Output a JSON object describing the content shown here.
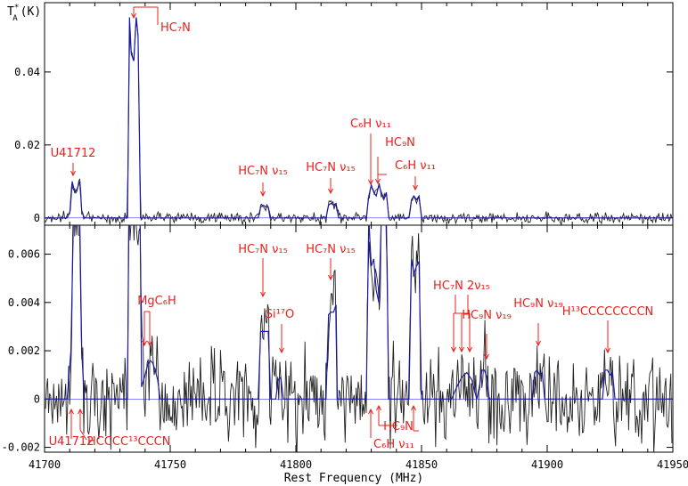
{
  "chart_data": [
    {
      "type": "line",
      "panel": "top",
      "ylabel": "T",
      "ylabel_sub": "A",
      "ylabel_sup": "*",
      "ylabel_unit": "(K)",
      "xlim": [
        41700,
        41950
      ],
      "ylim": [
        -0.002,
        0.059
      ],
      "yticks": [
        0,
        0.02,
        0.04
      ],
      "ytick_labels": [
        "0",
        "0.02",
        "0.04"
      ],
      "series": [
        {
          "color": "#1a1aa8",
          "role": "model",
          "x": [
            41700,
            41709,
            41710.2,
            41711,
            41712,
            41713,
            41714,
            41714.8,
            41715.8,
            41733,
            41733.8,
            41734.5,
            41735.5,
            41736.5,
            41737.2,
            41738.2,
            41785,
            41786,
            41787,
            41788,
            41789,
            41790,
            41812,
            41813,
            41814,
            41815,
            41816,
            41817,
            41828,
            41829,
            41830,
            41831,
            41832,
            41833,
            41834,
            41835,
            41836,
            41837,
            41845,
            41846,
            41847,
            41848,
            41849,
            41850,
            41950
          ],
          "y": [
            0,
            0,
            0.002,
            0.01,
            0.007,
            0.008,
            0.01,
            0.002,
            0,
            0,
            0.055,
            0.045,
            0.043,
            0.055,
            0.05,
            0,
            0,
            0.003,
            0.0035,
            0.003,
            0.003,
            0,
            0,
            0.0035,
            0.004,
            0.0035,
            0.004,
            0,
            0,
            0.006,
            0.009,
            0.007,
            0.006,
            0.009,
            0.007,
            0.005,
            0.007,
            0,
            0,
            0.005,
            0.006,
            0.005,
            0.006,
            0,
            0
          ]
        }
      ],
      "annotations": [
        {
          "text": "HC₇N",
          "x": 41736
        },
        {
          "text": "U41712",
          "x": 41712
        },
        {
          "text": "HC₇N ν₁₅",
          "x": 41787
        },
        {
          "text": "HC₇N ν₁₅",
          "x": 41814
        },
        {
          "text": "C₆H ν₁₁",
          "x": 41830
        },
        {
          "text": "HC₉N",
          "x": 41834
        },
        {
          "text": "C₆H ν₁₁",
          "x": 41847
        }
      ]
    },
    {
      "type": "line",
      "panel": "bottom",
      "xlabel": "Rest Frequency (MHz)",
      "xlim": [
        41700,
        41950
      ],
      "ylim": [
        -0.0022,
        0.0072
      ],
      "xticks": [
        41700,
        41750,
        41800,
        41850,
        41900,
        41950
      ],
      "xtick_labels": [
        "41700",
        "41750",
        "41800",
        "41850",
        "41900",
        "41950"
      ],
      "yticks": [
        -0.002,
        0,
        0.002,
        0.004,
        0.006
      ],
      "ytick_labels": [
        "-0.002",
        "0",
        "0.002",
        "0.004",
        "0.006"
      ],
      "series": [
        {
          "color": "#1a1aa8",
          "role": "model",
          "x": [
            41700,
            41709,
            41710.5,
            41711.5,
            41713,
            41714,
            41714.8,
            41715.8,
            41733,
            41733.5,
            41738,
            41738.6,
            41740,
            41741,
            41742,
            41743,
            41744,
            41745,
            41746,
            41785,
            41786,
            41787,
            41788,
            41789,
            41790,
            41792,
            41793,
            41794,
            41795,
            41812,
            41813,
            41814,
            41815,
            41816,
            41816.5,
            41828,
            41829,
            41830,
            41831,
            41832,
            41833,
            41834,
            41835,
            41836,
            41837,
            41845,
            41846,
            41847,
            41848,
            41849,
            41850,
            41862,
            41864,
            41866,
            41868,
            41870,
            41872,
            41873,
            41874,
            41875,
            41876,
            41877,
            41894,
            41895,
            41896,
            41897,
            41898,
            41899,
            41922,
            41923,
            41924,
            41925,
            41926,
            41927,
            41950
          ],
          "y": [
            0,
            0,
            0.002,
            0.0075,
            0.0075,
            0.0075,
            0.002,
            0,
            0,
            0.0075,
            0.0075,
            0.0005,
            0.001,
            0.0014,
            0.0016,
            0.0015,
            0.0012,
            0.0008,
            0,
            0,
            0.0028,
            0.0028,
            0.0028,
            0.0028,
            0,
            0,
            0.0008,
            0.0009,
            0,
            0,
            0.0035,
            0.0036,
            0.0036,
            0.0039,
            0,
            0,
            0.0075,
            0.0055,
            0.0058,
            0.0045,
            0.004,
            0.0075,
            0.0075,
            0.0075,
            0,
            0,
            0.0058,
            0.0052,
            0.0055,
            0.0057,
            0,
            0,
            0.0005,
            0.0009,
            0.0011,
            0.0008,
            0,
            0.0005,
            0.0012,
            0.0012,
            0.0009,
            0,
            0,
            0.0011,
            0.0012,
            0.001,
            0.0011,
            0,
            0,
            0.0012,
            0.0012,
            0.001,
            0.0011,
            0,
            0
          ]
        }
      ],
      "annotations": [
        {
          "text": "HC₇N ν₁₅",
          "x": 41787
        },
        {
          "text": "HC₇N ν₁₅",
          "x": 41814
        },
        {
          "text": "MgC₆H",
          "x": 41742
        },
        {
          "text": "Si¹⁷O",
          "x": 41794
        },
        {
          "text": "HC₇N 2ν₁₅",
          "x": 41866
        },
        {
          "text": "HC₉N ν₁₉",
          "x": 41875
        },
        {
          "text": "HC₉N ν₁₉",
          "x": 41897
        },
        {
          "text": "H¹³CCCCCCCCN",
          "x": 41924
        },
        {
          "text": "U41712",
          "x": 41712
        },
        {
          "text": "HCCCC¹³CCCN",
          "x": 41715
        },
        {
          "text": "HC₉N",
          "x": 41834
        },
        {
          "text": "C₆H ν₁₁",
          "x": 41830
        }
      ]
    }
  ]
}
